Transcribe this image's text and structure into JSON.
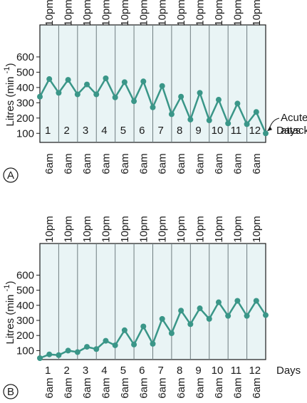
{
  "colors": {
    "line": "#3a9688",
    "marker": "#3a9688",
    "panel_fill": "#e9f4f5",
    "panel_border": "#1a1a1a",
    "day_divider": "#6f7d80"
  },
  "chart_data": [
    {
      "type": "line",
      "panel_label": "A",
      "ylabel": "Litres (min -1)",
      "ylabel_main": "Litres (min",
      "ylabel_sup": "-1",
      "ylabel_close": ")",
      "xlabel": "Days",
      "yticks": [
        "100",
        "200",
        "300",
        "400",
        "500",
        "600"
      ],
      "ytick_values": [
        100,
        200,
        300,
        400,
        500,
        600
      ],
      "ylim": [
        50,
        800
      ],
      "days": [
        "1",
        "2",
        "3",
        "4",
        "5",
        "6",
        "7",
        "8",
        "9",
        "10",
        "11",
        "12"
      ],
      "top_label": "10pm",
      "bottom_label": "6am",
      "annotation": [
        "Acute",
        "attack"
      ],
      "grid": false,
      "series": [
        {
          "x": [
            "6am d1",
            "10pm d1",
            "6am d2",
            "10pm d2",
            "6am d3",
            "10pm d3",
            "6am d4",
            "10pm d4",
            "6am d5",
            "10pm d5",
            "6am d6",
            "10pm d6",
            "6am d7",
            "10pm d7",
            "6am d8",
            "10pm d8",
            "6am d9",
            "10pm d9",
            "6am d10",
            "10pm d10",
            "6am d11",
            "10pm d11",
            "6am d12",
            "10pm d12",
            "6am d13"
          ],
          "values": [
            340,
            455,
            365,
            450,
            355,
            420,
            355,
            460,
            335,
            435,
            310,
            440,
            270,
            410,
            225,
            340,
            190,
            365,
            185,
            320,
            165,
            295,
            160,
            240,
            100
          ]
        }
      ]
    },
    {
      "type": "line",
      "panel_label": "B",
      "ylabel": "Litres (min -1)",
      "ylabel_main": "Litres (min",
      "ylabel_sup": "-1",
      "ylabel_close": ")",
      "xlabel": "Days",
      "yticks": [
        "100",
        "200",
        "300",
        "400",
        "500",
        "600"
      ],
      "ytick_values": [
        100,
        200,
        300,
        400,
        500,
        600
      ],
      "ylim": [
        50,
        800
      ],
      "days": [
        "1",
        "2",
        "3",
        "4",
        "5",
        "6",
        "7",
        "8",
        "9",
        "10",
        "11",
        "12"
      ],
      "top_label": "10pm",
      "bottom_label": "6am",
      "grid": false,
      "series": [
        {
          "x": [
            "6am d1",
            "10pm d1",
            "6am d2",
            "10pm d2",
            "6am d3",
            "10pm d3",
            "6am d4",
            "10pm d4",
            "6am d5",
            "10pm d5",
            "6am d6",
            "10pm d6",
            "6am d7",
            "10pm d7",
            "6am d8",
            "10pm d8",
            "6am d9",
            "10pm d9",
            "6am d10",
            "10pm d10",
            "6am d11",
            "10pm d11",
            "6am d12",
            "10pm d12",
            "6am d13"
          ],
          "values": [
            50,
            75,
            70,
            100,
            90,
            125,
            110,
            165,
            135,
            235,
            140,
            260,
            145,
            310,
            215,
            365,
            275,
            380,
            310,
            420,
            330,
            430,
            330,
            430,
            335
          ]
        }
      ]
    }
  ]
}
